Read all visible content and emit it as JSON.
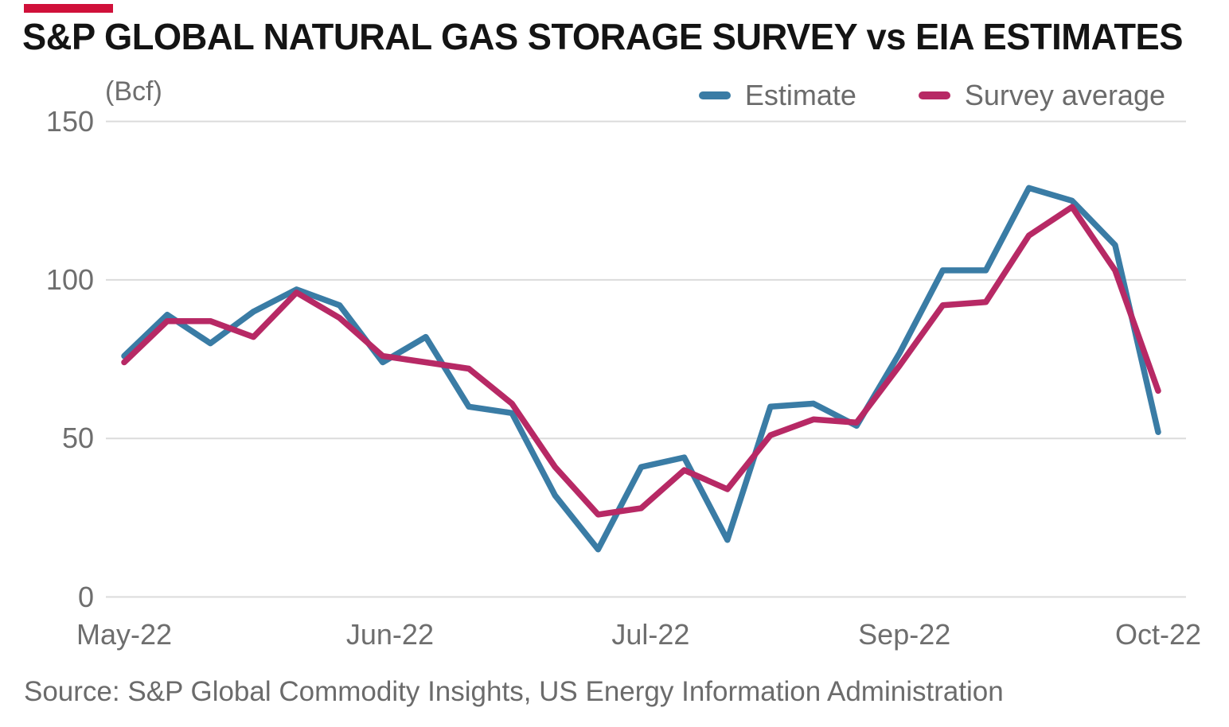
{
  "page": {
    "title": "S&P GLOBAL NATURAL GAS STORAGE SURVEY vs EIA ESTIMATES",
    "unit_label": "(Bcf)",
    "source": "Source: S&P Global Commodity Insights, US Energy Information Administration",
    "brand_bar_color": "#D0103A",
    "background_color": "#FFFFFF",
    "title_color": "#141414",
    "axis_text_color": "#6E6E6E",
    "gridline_color": "#DBDBDB"
  },
  "legend": {
    "position": "top-right",
    "items": [
      {
        "label": "Estimate",
        "color": "#3A7CA5"
      },
      {
        "label": "Survey average",
        "color": "#B72965"
      }
    ]
  },
  "chart_data": {
    "type": "line",
    "title": "S&P GLOBAL NATURAL GAS STORAGE SURVEY vs EIA ESTIMATES",
    "ylabel": "(Bcf)",
    "xlabel": "",
    "unit": "Bcf",
    "grid": "horizontal",
    "ylim": [
      0,
      160
    ],
    "y_ticks": [
      0,
      50,
      100,
      150
    ],
    "x_unit": "weekly observations, May 2022 to Oct 2022 (left to right)",
    "n_points": 25,
    "x_tick_labels": [
      "May-22",
      "Jun-22",
      "Jul-22",
      "Sep-22",
      "Oct-22"
    ],
    "x_tick_positions": [
      0,
      6.17,
      12.22,
      18.11,
      24
    ],
    "series": [
      {
        "name": "Estimate",
        "color": "#3A7CA5",
        "values": [
          76,
          89,
          80,
          90,
          97,
          92,
          74,
          82,
          60,
          58,
          32,
          15,
          41,
          44,
          18,
          60,
          61,
          54,
          77,
          103,
          103,
          129,
          125,
          111,
          52
        ]
      },
      {
        "name": "Survey average",
        "color": "#B72965",
        "values": [
          74,
          87,
          87,
          82,
          96,
          88,
          76,
          74,
          72,
          61,
          41,
          26,
          28,
          40,
          34,
          51,
          56,
          55,
          73,
          92,
          93,
          114,
          123,
          103,
          65
        ]
      }
    ]
  }
}
